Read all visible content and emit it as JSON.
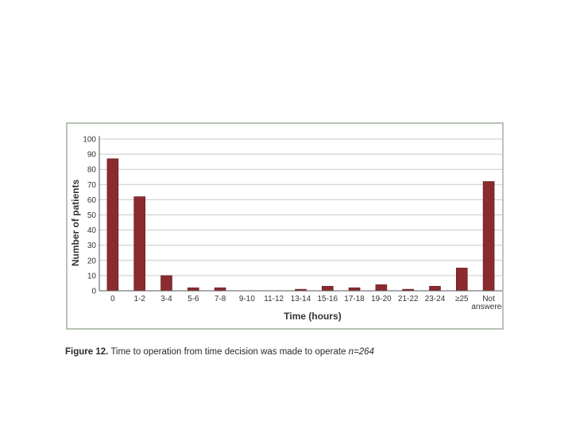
{
  "chart_data": {
    "type": "bar",
    "title": "",
    "xlabel": "Time (hours)",
    "ylabel": "Number of patients",
    "ylim": [
      0,
      100
    ],
    "yticks": [
      0,
      10,
      20,
      30,
      40,
      50,
      60,
      70,
      80,
      90,
      100
    ],
    "grid": true,
    "categories": [
      "0",
      "1-2",
      "3-4",
      "5-6",
      "7-8",
      "9-10",
      "11-12",
      "13-14",
      "15-16",
      "17-18",
      "19-20",
      "21-22",
      "23-24",
      "≥25",
      "Not answered"
    ],
    "category_lines": [
      [
        "0"
      ],
      [
        "1-2"
      ],
      [
        "3-4"
      ],
      [
        "5-6"
      ],
      [
        "7-8"
      ],
      [
        "9-10"
      ],
      [
        "11-12"
      ],
      [
        "13-14"
      ],
      [
        "15-16"
      ],
      [
        "17-18"
      ],
      [
        "19-20"
      ],
      [
        "21-22"
      ],
      [
        "23-24"
      ],
      [
        "≥25"
      ],
      [
        "Not",
        "answered"
      ]
    ],
    "values": [
      87,
      62,
      10,
      2,
      2,
      0,
      0,
      1,
      3,
      2,
      4,
      1,
      3,
      15,
      72
    ],
    "bar_color": "#8b2a2f",
    "grid_color": "#c9c9c9",
    "frame_color": "#b8c4b4"
  },
  "caption": {
    "label": "Figure 12.",
    "text": " Time to operation from time decision was made to operate ",
    "n": "n=264"
  }
}
